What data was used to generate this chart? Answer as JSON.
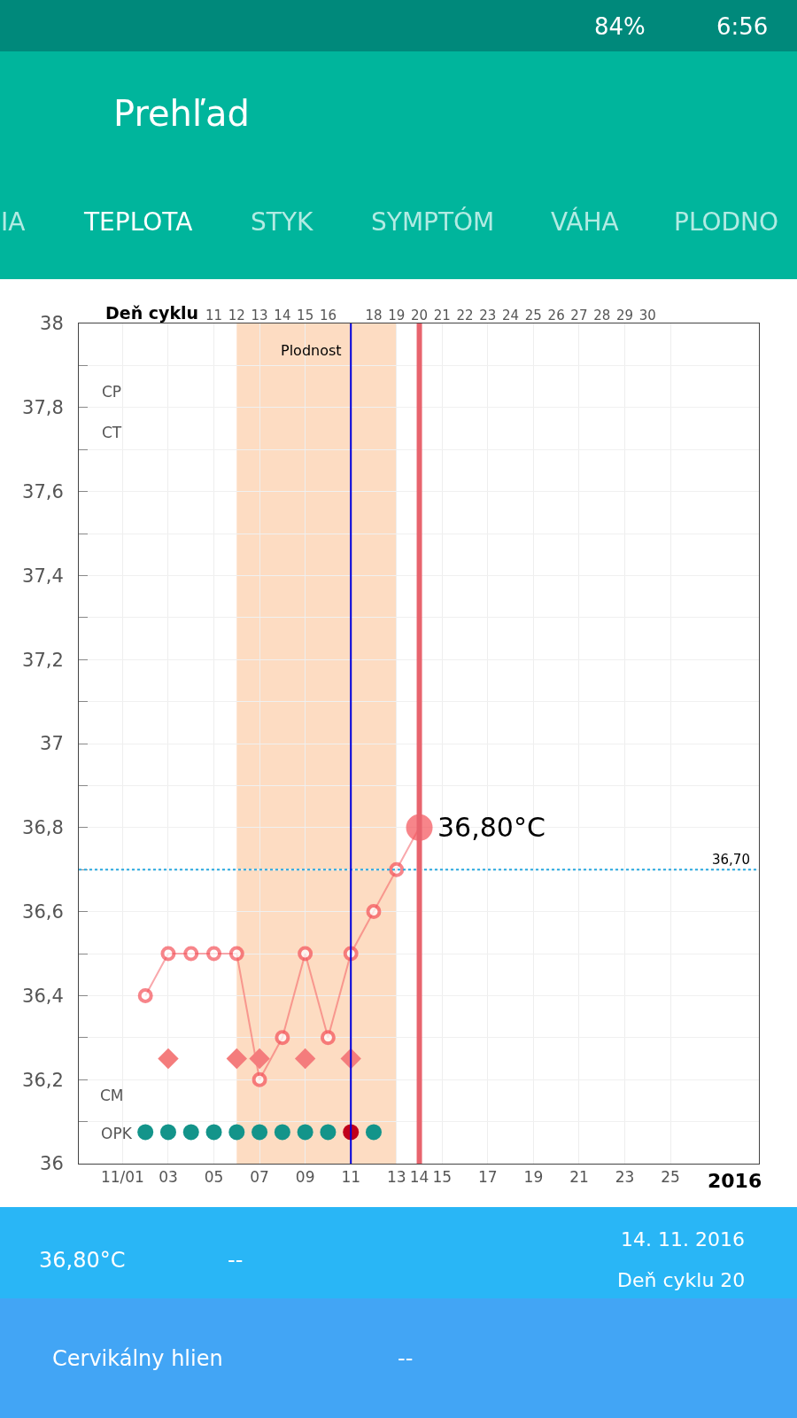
{
  "chart_data": {
    "type": "line",
    "title": "Prehľad",
    "x2label": "Deň cyklu",
    "xlim": [
      "2016-10-30T02:00",
      "2016-11-28T21:00"
    ],
    "xticks": [
      {
        "value": "2016-11-01",
        "label": "11/01"
      },
      {
        "value": "2016-11-03",
        "label": "03"
      },
      {
        "value": "2016-11-05",
        "label": "05"
      },
      {
        "value": "2016-11-07",
        "label": "07"
      },
      {
        "value": "2016-11-09",
        "label": "09"
      },
      {
        "value": "2016-11-11",
        "label": "11"
      },
      {
        "value": "2016-11-13",
        "label": "13"
      },
      {
        "value": "2016-11-14",
        "label": "14"
      },
      {
        "value": "2016-11-15",
        "label": "15"
      },
      {
        "value": "2016-11-17",
        "label": "17"
      },
      {
        "value": "2016-11-19",
        "label": "19"
      },
      {
        "value": "2016-11-21",
        "label": "21"
      },
      {
        "value": "2016-11-23",
        "label": "23"
      },
      {
        "value": "2016-11-25",
        "label": "25"
      }
    ],
    "x2lim": [
      5.08,
      34.88
    ],
    "x2ticks": [
      11,
      12,
      13,
      14,
      15,
      16,
      18,
      19,
      20,
      21,
      22,
      23,
      24,
      25,
      26,
      27,
      28,
      29,
      30
    ],
    "ylim": [
      36,
      38
    ],
    "yticks": [
      36,
      {
        "value": 36.1,
        "label": null
      },
      {
        "value": 36.2,
        "label": "36,2"
      },
      {
        "value": 36.3,
        "label": null
      },
      {
        "value": 36.4,
        "label": "36,4"
      },
      {
        "value": 36.5,
        "label": null
      },
      {
        "value": 36.6,
        "label": "36,6"
      },
      {
        "value": 36.7,
        "label": null
      },
      {
        "value": 36.8,
        "label": "36,8"
      },
      {
        "value": 36.9,
        "label": null
      },
      37,
      {
        "value": 37.1,
        "label": null
      },
      {
        "value": 37.2,
        "label": "37,2"
      },
      {
        "value": 37.3,
        "label": null
      },
      {
        "value": 37.4,
        "label": "37,4"
      },
      {
        "value": 37.5,
        "label": null
      },
      {
        "value": 37.6,
        "label": "37,6"
      },
      {
        "value": 37.7,
        "label": null
      },
      {
        "value": 37.8,
        "label": "37,8"
      },
      {
        "value": 37.9,
        "label": null
      },
      38
    ],
    "grid": true,
    "series": [
      {
        "color": "#f4525a",
        "marker": "circle",
        "x": [
          "2016-11-02",
          "2016-11-03",
          "2016-11-04",
          "2016-11-05",
          "2016-11-06",
          "2016-11-07",
          "2016-11-08",
          "2016-11-09",
          "2016-11-10",
          "2016-11-11",
          "2016-11-12",
          "2016-11-13",
          "2016-11-14"
        ],
        "values": [
          36.4,
          36.5,
          36.5,
          36.5,
          36.5,
          36.2,
          36.3,
          36.5,
          36.3,
          36.5,
          36.6,
          36.7,
          36.8
        ]
      },
      {
        "type": "scatter",
        "color": "#f47c7c",
        "marker": "diamond",
        "x": [
          "2016-11-03",
          "2016-11-06",
          "2016-11-07",
          "2016-11-09",
          "2016-11-11"
        ],
        "values": [
          36.25,
          36.25,
          36.25,
          36.25,
          36.25
        ]
      },
      {
        "type": "scatter",
        "marker": "circle",
        "colors": [
          "#13948a",
          "#13948a",
          "#13948a",
          "#13948a",
          "#13948a",
          "#13948a",
          "#13948a",
          "#13948a",
          "#13948a",
          "#c0001a",
          "#13948a"
        ],
        "x": [
          "2016-11-02",
          "2016-11-03",
          "2016-11-04",
          "2016-11-05",
          "2016-11-06",
          "2016-11-07",
          "2016-11-08",
          "2016-11-09",
          "2016-11-10",
          "2016-11-11",
          "2016-11-12"
        ],
        "values": [
          36.075,
          36.075,
          36.075,
          36.075,
          36.075,
          36.075,
          36.075,
          36.075,
          36.075,
          36.075,
          36.075
        ]
      }
    ],
    "ref_lines": [
      {
        "axis": "y",
        "value": 36.7,
        "label": "36,70",
        "color": "#29a9e0",
        "line_style": "dotted"
      },
      {
        "axis": "x",
        "value": "2016-11-11",
        "color": "#0000dd",
        "line_style": "solid"
      },
      {
        "axis": "x",
        "value": "2016-11-14",
        "color": "#e8646e",
        "line_style": "solid"
      }
    ],
    "bands": [
      {
        "axis": "x",
        "from": "2016-11-06",
        "to": "2016-11-13",
        "label": "Plodnost",
        "color": "#fddcc2"
      }
    ],
    "annotations": [
      "84%",
      "6:56",
      "IA",
      "TEPLOTA",
      "STYK",
      "SYMPTÓM",
      "VÁHA",
      "PLODNO",
      "CP",
      "CT",
      "CM",
      "OPK",
      "2016",
      {
        "text": "36,80°C",
        "x": "2016-11-14",
        "y": 36.8
      },
      "36,80°C",
      "--",
      "14. 11. 2016",
      "Deň cyklu 20",
      "Cervikálny hlien",
      "--"
    ]
  }
}
